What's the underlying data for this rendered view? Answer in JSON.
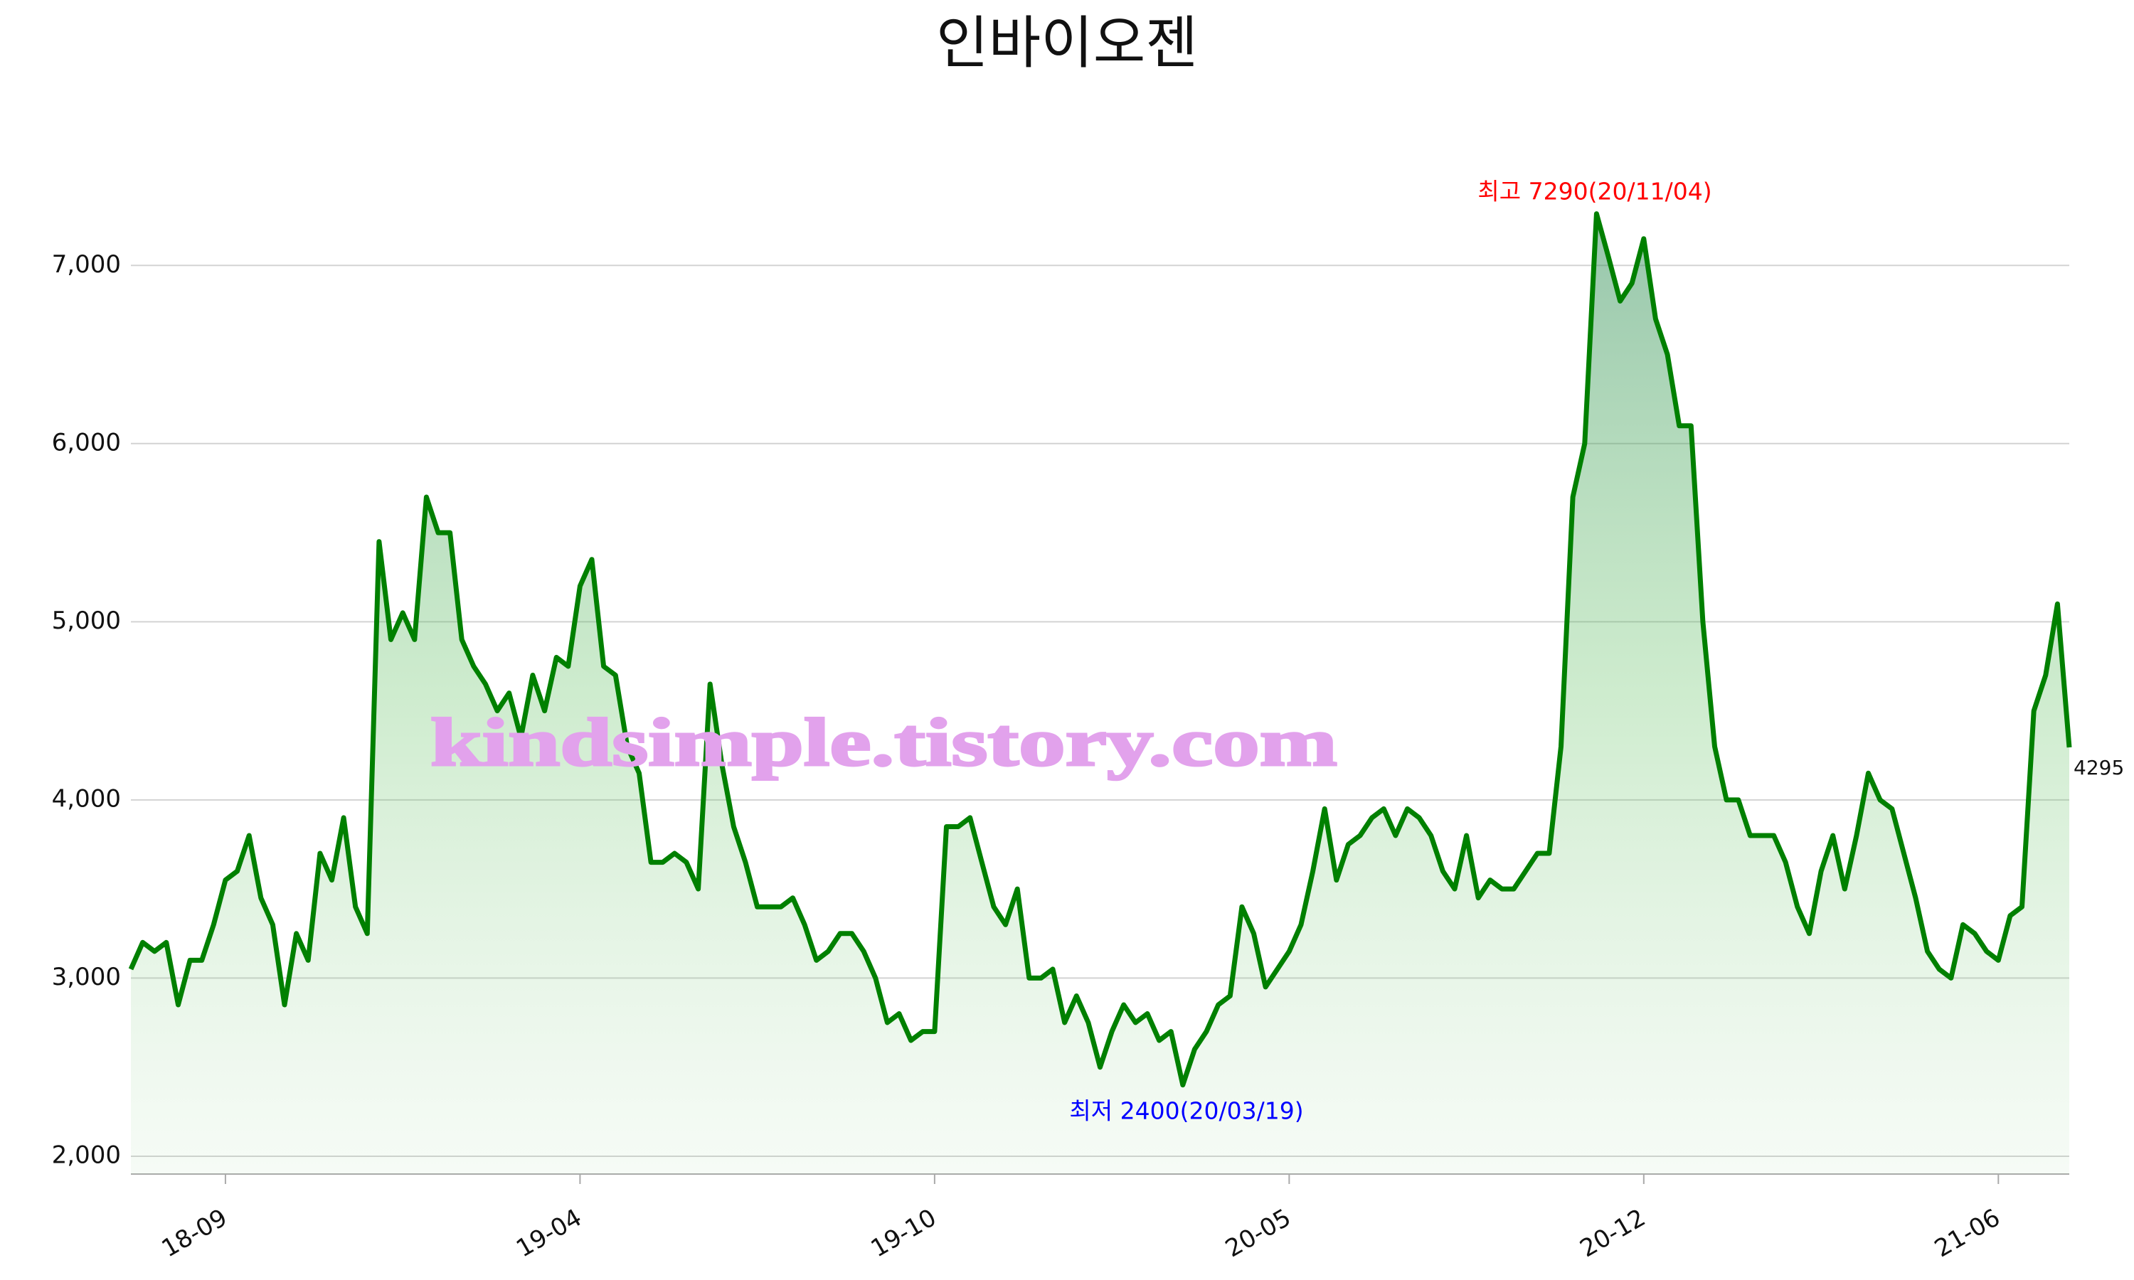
{
  "chart_data": {
    "type": "line",
    "title": "인바이오젠",
    "categories": [
      null,
      null,
      null,
      null,
      null,
      null,
      null,
      null,
      "18-09",
      null,
      null,
      null,
      null,
      null,
      null,
      null,
      null,
      null,
      null,
      null,
      null,
      null,
      null,
      null,
      null,
      null,
      null,
      null,
      null,
      null,
      null,
      null,
      null,
      null,
      null,
      null,
      null,
      null,
      "19-04",
      null,
      null,
      null,
      null,
      null,
      null,
      null,
      null,
      null,
      null,
      null,
      null,
      null,
      null,
      null,
      null,
      null,
      null,
      null,
      null,
      null,
      null,
      null,
      null,
      null,
      null,
      null,
      null,
      null,
      "19-10",
      null,
      null,
      null,
      null,
      null,
      null,
      null,
      null,
      null,
      null,
      null,
      null,
      null,
      null,
      null,
      null,
      null,
      null,
      null,
      null,
      null,
      null,
      null,
      null,
      null,
      null,
      null,
      null,
      null,
      "20-05",
      null,
      null,
      null,
      null,
      null,
      null,
      null,
      null,
      null,
      null,
      null,
      null,
      null,
      null,
      null,
      null,
      null,
      null,
      null,
      null,
      null,
      null,
      null,
      null,
      null,
      null,
      null,
      null,
      null,
      "20-12",
      null,
      null,
      null,
      null,
      null,
      null,
      null,
      null,
      null,
      null,
      null,
      null,
      null,
      null,
      null,
      null,
      null,
      null,
      null,
      null,
      null,
      null,
      null,
      null,
      null,
      null,
      null,
      null,
      null,
      "21-06",
      null,
      null,
      null,
      null,
      null,
      null
    ],
    "series": [
      {
        "color": "#008000",
        "values": [
          3050,
          3200,
          3150,
          3200,
          2850,
          3100,
          3100,
          3300,
          3550,
          3600,
          3800,
          3450,
          3300,
          2850,
          3250,
          3100,
          3700,
          3550,
          3900,
          3400,
          3250,
          5450,
          4900,
          5050,
          4900,
          5700,
          5500,
          5500,
          4900,
          4750,
          4650,
          4500,
          4600,
          4350,
          4700,
          4500,
          4800,
          4750,
          5200,
          5350,
          4750,
          4700,
          4300,
          4150,
          3650,
          3650,
          3700,
          3650,
          3500,
          4650,
          4200,
          3850,
          3650,
          3400,
          3400,
          3400,
          3450,
          3300,
          3100,
          3150,
          3250,
          3250,
          3150,
          3000,
          2750,
          2800,
          2650,
          2700,
          2700,
          3850,
          3850,
          3900,
          3650,
          3400,
          3300,
          3500,
          3000,
          3000,
          3050,
          2750,
          2900,
          2750,
          2500,
          2700,
          2850,
          2750,
          2800,
          2650,
          2700,
          2400,
          2600,
          2700,
          2850,
          2900,
          3400,
          3250,
          2950,
          3050,
          3150,
          3300,
          3600,
          3950,
          3550,
          3750,
          3800,
          3900,
          3950,
          3800,
          3950,
          3900,
          3800,
          3600,
          3500,
          3800,
          3450,
          3550,
          3500,
          3500,
          3600,
          3700,
          3700,
          4300,
          5700,
          6000,
          7290,
          7050,
          6800,
          6900,
          7150,
          6700,
          6500,
          6100,
          6100,
          5000,
          4300,
          4000,
          4000,
          3800,
          3800,
          3800,
          3650,
          3400,
          3250,
          3600,
          3800,
          3500,
          3800,
          4150,
          4000,
          3950,
          3700,
          3450,
          3150,
          3050,
          3000,
          3300,
          3250,
          3150,
          3100,
          3350,
          3400,
          4500,
          4700,
          5100,
          4295
        ]
      }
    ],
    "annotations": [
      "최고 7290(20/11/04)",
      "최저 2400(20/03/19)",
      "kindsimple.tistory.com"
    ],
    "ylim": [
      1900,
      7500
    ],
    "yticks": [
      {
        "value": 2000,
        "label": "2,000"
      },
      {
        "value": 3000,
        "label": "3,000"
      },
      {
        "value": 4000,
        "label": "4,000"
      },
      {
        "value": 5000,
        "label": "5,000"
      },
      {
        "value": 6000,
        "label": "6,000"
      },
      {
        "value": 7000,
        "label": "7,000"
      }
    ],
    "grid": true
  }
}
